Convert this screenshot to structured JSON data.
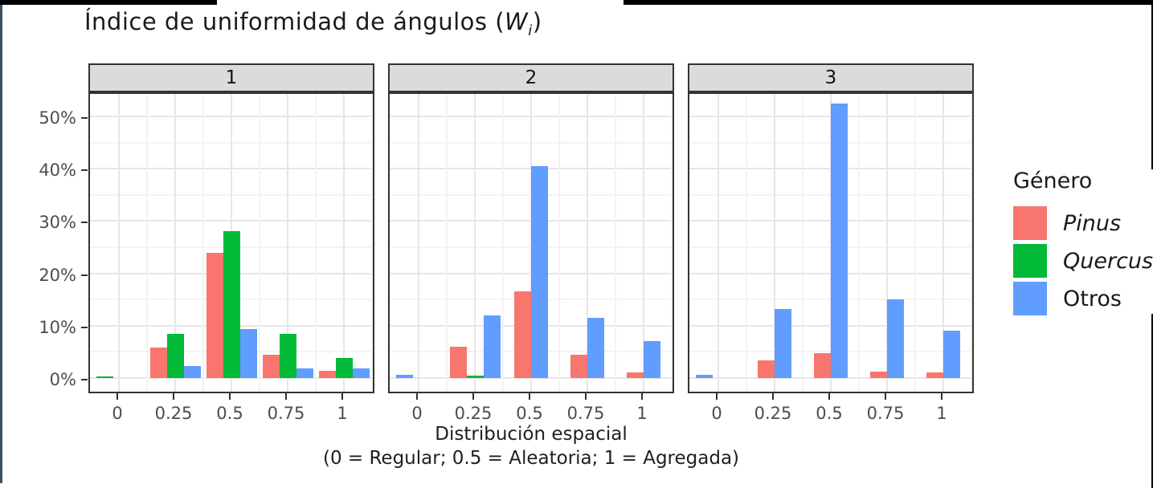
{
  "window": {
    "top_border_color": "#000000",
    "left_border_color": "#3c5064",
    "right_border_color": "#000000"
  },
  "title": {
    "prefix": "Índice de uniformidad de ángulos (",
    "var": "W",
    "sub": "i",
    "suffix": ")"
  },
  "y_axis": {
    "tick_labels": [
      "0%",
      "10%",
      "20%",
      "30%",
      "40%",
      "50%"
    ],
    "tick_values": [
      0,
      10,
      20,
      30,
      40,
      50
    ]
  },
  "x_axis": {
    "tick_labels": [
      "0",
      "0.25",
      "0.5",
      "0.75",
      "1"
    ],
    "title_line1": "Distribución espacial",
    "title_line2": "(0 = Regular; 0.5 = Aleatoria; 1 = Agregada)"
  },
  "legend": {
    "title": "Género",
    "items": [
      {
        "label": "Pinus",
        "color": "#F8766D",
        "italic": true
      },
      {
        "label": "Quercus",
        "color": "#00BA38",
        "italic": true
      },
      {
        "label": "Otros",
        "color": "#619CFF",
        "italic": false
      }
    ]
  },
  "chart_data": {
    "type": "bar",
    "title": "Índice de uniformidad de ángulos (Wi)",
    "xlabel": "Distribución espacial (0 = Regular; 0.5 = Aleatoria; 1 = Agregada)",
    "ylabel": "",
    "ylim": [
      0,
      55
    ],
    "y_unit": "percent",
    "grid": true,
    "legend_position": "right",
    "legend_title": "Género",
    "facet_variable_values": [
      "1",
      "2",
      "3"
    ],
    "x": [
      0,
      0.25,
      0.5,
      0.75,
      1
    ],
    "categories": [
      "0",
      "0.25",
      "0.5",
      "0.75",
      "1"
    ],
    "facets": [
      {
        "label": "1",
        "series": [
          {
            "name": "Pinus",
            "color": "#F8766D",
            "values": [
              0,
              5.8,
              24.0,
              4.5,
              1.4
            ]
          },
          {
            "name": "Quercus",
            "color": "#00BA38",
            "values": [
              0.3,
              8.4,
              28.0,
              8.4,
              3.8
            ]
          },
          {
            "name": "Otros",
            "color": "#619CFF",
            "values": [
              0,
              2.3,
              9.4,
              1.8,
              1.8
            ]
          }
        ]
      },
      {
        "label": "2",
        "series": [
          {
            "name": "Pinus",
            "color": "#F8766D",
            "values": [
              0,
              6.0,
              16.5,
              4.4,
              1.1
            ]
          },
          {
            "name": "Quercus",
            "color": "#00BA38",
            "values": [
              0,
              0.5,
              0,
              0,
              0
            ]
          },
          {
            "name": "Otros",
            "color": "#619CFF",
            "values": [
              0.6,
              12.0,
              40.5,
              11.5,
              7.0
            ]
          }
        ]
      },
      {
        "label": "3",
        "series": [
          {
            "name": "Pinus",
            "color": "#F8766D",
            "values": [
              0,
              3.3,
              4.7,
              1.2,
              1.0
            ]
          },
          {
            "name": "Quercus",
            "color": "#00BA38",
            "values": [
              0,
              0,
              0,
              0,
              0
            ]
          },
          {
            "name": "Otros",
            "color": "#619CFF",
            "values": [
              0.6,
              13.2,
              52.5,
              15.0,
              9.0
            ]
          }
        ]
      }
    ]
  }
}
